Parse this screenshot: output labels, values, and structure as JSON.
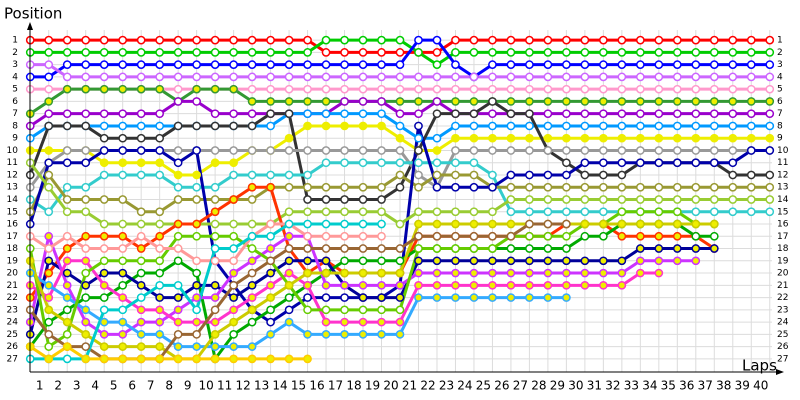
{
  "chart_data": {
    "type": "line",
    "y_label": "Position",
    "x_label": "Laps",
    "x": [
      0,
      1,
      2,
      3,
      4,
      5,
      6,
      7,
      8,
      9,
      10,
      11,
      12,
      13,
      14,
      15,
      16,
      17,
      18,
      19,
      20,
      21,
      22,
      23,
      24,
      25,
      26,
      27,
      28,
      29,
      30,
      31,
      32,
      33,
      34,
      35,
      36,
      37,
      38,
      39,
      40
    ],
    "xlim": [
      -0.5,
      40.5
    ],
    "xticks": [
      1,
      2,
      3,
      4,
      5,
      6,
      7,
      8,
      9,
      10,
      11,
      12,
      13,
      14,
      15,
      16,
      17,
      18,
      19,
      20,
      21,
      22,
      23,
      24,
      25,
      26,
      27,
      28,
      29,
      30,
      31,
      32,
      33,
      34,
      35,
      36,
      37,
      38,
      39,
      40
    ],
    "ylim": [
      27.5,
      0.5
    ],
    "yticks": [
      1,
      2,
      3,
      4,
      5,
      6,
      7,
      8,
      9,
      10,
      11,
      12,
      13,
      14,
      15,
      16,
      17,
      18,
      19,
      20,
      21,
      22,
      23,
      24,
      25,
      26,
      27
    ],
    "grid": true,
    "series": [
      {
        "color": "#ff0000",
        "marker_color": "#ffffff",
        "values": [
          1,
          1,
          1,
          1,
          1,
          1,
          1,
          1,
          1,
          1,
          1,
          1,
          1,
          1,
          1,
          1,
          2,
          2,
          2,
          2,
          2,
          2,
          2,
          1,
          1,
          1,
          1,
          1,
          1,
          1,
          1,
          1,
          1,
          1,
          1,
          1,
          1,
          1,
          1,
          1,
          1
        ]
      },
      {
        "color": "#00cc00",
        "marker_color": "#ffffff",
        "values": [
          2,
          2,
          2,
          2,
          2,
          2,
          2,
          2,
          2,
          2,
          2,
          2,
          2,
          2,
          2,
          2,
          1,
          1,
          1,
          1,
          1,
          2,
          3,
          2,
          2,
          2,
          2,
          2,
          2,
          2,
          2,
          2,
          2,
          2,
          2,
          2,
          2,
          2,
          2,
          2,
          2
        ]
      },
      {
        "color": "#0000ff",
        "marker_color": "#ffffff",
        "values": [
          4,
          4,
          3,
          3,
          3,
          3,
          3,
          3,
          3,
          3,
          3,
          3,
          3,
          3,
          3,
          3,
          3,
          3,
          3,
          3,
          3,
          1,
          1,
          3,
          4,
          3,
          3,
          3,
          3,
          3,
          3,
          3,
          3,
          3,
          3,
          3,
          3,
          3,
          3,
          3,
          3
        ]
      },
      {
        "color": "#cc66ff",
        "marker_color": "#ffffff",
        "values": [
          3,
          3,
          4,
          4,
          4,
          4,
          4,
          4,
          4,
          4,
          4,
          4,
          4,
          4,
          4,
          4,
          4,
          4,
          4,
          4,
          4,
          4,
          4,
          4,
          4,
          4,
          4,
          4,
          4,
          4,
          4,
          4,
          4,
          4,
          4,
          4,
          4,
          4,
          4,
          4,
          4
        ]
      },
      {
        "color": "#ff99cc",
        "marker_color": "#ffffff",
        "values": [
          5,
          5,
          5,
          5,
          5,
          5,
          5,
          5,
          5,
          5,
          5,
          5,
          5,
          5,
          5,
          5,
          5,
          5,
          5,
          5,
          5,
          5,
          5,
          5,
          5,
          5,
          5,
          5,
          5,
          5,
          5,
          5,
          5,
          5,
          5,
          5,
          5,
          5,
          5,
          5,
          5
        ]
      },
      {
        "color": "#339933",
        "marker_color": "#eeee00",
        "values": [
          7,
          6,
          5,
          5,
          5,
          5,
          5,
          5,
          6,
          5,
          5,
          5,
          6,
          6,
          6,
          6,
          6,
          6,
          6,
          6,
          6,
          6,
          6,
          6,
          6,
          6,
          6,
          6,
          6,
          6,
          6,
          6,
          6,
          6,
          6,
          6,
          6,
          6,
          6,
          6,
          6
        ]
      },
      {
        "color": "#9900cc",
        "marker_color": "#ffffff",
        "values": [
          8,
          7,
          7,
          7,
          7,
          7,
          7,
          7,
          6,
          6,
          7,
          7,
          7,
          7,
          7,
          7,
          7,
          6,
          6,
          6,
          7,
          7,
          6,
          7,
          7,
          7,
          7,
          7,
          7,
          7,
          7,
          7,
          7,
          7,
          7,
          7,
          7,
          7,
          7,
          7,
          7
        ]
      },
      {
        "color": "#0099ff",
        "marker_color": "#ffffff",
        "values": [
          9,
          8,
          8,
          8,
          8,
          8,
          8,
          8,
          8,
          8,
          8,
          8,
          8,
          8,
          7,
          7,
          7,
          7,
          7,
          7,
          8,
          9,
          9,
          8,
          8,
          8,
          8,
          8,
          8,
          8,
          8,
          8,
          8,
          8,
          8,
          8,
          8,
          8,
          8,
          8,
          8
        ]
      },
      {
        "color": "#eeee00",
        "marker_color": "#eeee00",
        "values": [
          10,
          10,
          10,
          10,
          11,
          11,
          11,
          11,
          12,
          12,
          11,
          11,
          10,
          10,
          9,
          8,
          8,
          8,
          8,
          8,
          9,
          10,
          10,
          9,
          9,
          9,
          9,
          9,
          9,
          9,
          9,
          9,
          9,
          9,
          9,
          9,
          9,
          9,
          9,
          9,
          9
        ]
      },
      {
        "color": "#333333",
        "marker_color": "#ffffff",
        "values": [
          12,
          8,
          8,
          8,
          9,
          9,
          9,
          9,
          8,
          8,
          8,
          8,
          8,
          7,
          7,
          14,
          14,
          14,
          14,
          14,
          13,
          10,
          7,
          7,
          7,
          6,
          7,
          7,
          10,
          11,
          12,
          12,
          12,
          11,
          11,
          11,
          11,
          11,
          12,
          12,
          12
        ]
      },
      {
        "color": "#999999",
        "marker_color": "#ffffff",
        "values": [
          13,
          11,
          10,
          10,
          10,
          10,
          10,
          10,
          10,
          10,
          10,
          10,
          10,
          10,
          10,
          10,
          10,
          10,
          10,
          10,
          10,
          12,
          13,
          10,
          10,
          10,
          10,
          10,
          10,
          10,
          10,
          10,
          10,
          10,
          10,
          10,
          10,
          10,
          10,
          10,
          10
        ]
      },
      {
        "color": "#33cccc",
        "marker_color": "#ffffff",
        "values": [
          14,
          15,
          13,
          13,
          12,
          12,
          12,
          12,
          13,
          13,
          13,
          12,
          12,
          12,
          12,
          12,
          11,
          11,
          11,
          11,
          11,
          11,
          11,
          11,
          11,
          12,
          15,
          15,
          15,
          15,
          15,
          15,
          15,
          15,
          15,
          15,
          15,
          15,
          15,
          15,
          15
        ]
      },
      {
        "color": "#999933",
        "marker_color": "#ffffff",
        "values": [
          15,
          12,
          14,
          14,
          14,
          14,
          15,
          15,
          14,
          14,
          14,
          14,
          14,
          13,
          13,
          13,
          13,
          13,
          13,
          13,
          12,
          13,
          12,
          12,
          12,
          13,
          13,
          13,
          13,
          13,
          13,
          13,
          13,
          13,
          13,
          13,
          13,
          13,
          13,
          13,
          13
        ]
      },
      {
        "color": "#0000aa",
        "marker_color": "#ffffff",
        "values": [
          16,
          11,
          11,
          11,
          10,
          10,
          10,
          10,
          11,
          10,
          19,
          21,
          23,
          24,
          23,
          22,
          22,
          22,
          22,
          22,
          21,
          8,
          13,
          13,
          13,
          13,
          12,
          12,
          12,
          12,
          11,
          11,
          11,
          11,
          11,
          11,
          11,
          11,
          11,
          10,
          10
        ]
      },
      {
        "color": "#99cc33",
        "marker_color": "#ffffff",
        "values": [
          11,
          13,
          15,
          15,
          16,
          16,
          16,
          16,
          16,
          16,
          16,
          16,
          16,
          16,
          15,
          15,
          15,
          15,
          15,
          15,
          16,
          15,
          15,
          15,
          15,
          15,
          14,
          14,
          14,
          14,
          14,
          14,
          14,
          14,
          14,
          14,
          14,
          14,
          14,
          14,
          14
        ]
      },
      {
        "color": "#ff3300",
        "marker_color": "#eeee00",
        "values": [
          22,
          20,
          18,
          17,
          17,
          17,
          18,
          17,
          16,
          16,
          15,
          14,
          13,
          13,
          18,
          20,
          19,
          20,
          20,
          20,
          20,
          17,
          17,
          17,
          17,
          17,
          17,
          17,
          17,
          16,
          16,
          16,
          17,
          17,
          17,
          17,
          17,
          18,
          null,
          null,
          null
        ]
      },
      {
        "color": "#00aa00",
        "marker_color": "#ffffff",
        "values": [
          26,
          24,
          23,
          22,
          22,
          21,
          20,
          20,
          19,
          20,
          27,
          25,
          24,
          23,
          22,
          21,
          20,
          19,
          19,
          19,
          19,
          18,
          18,
          18,
          18,
          18,
          18,
          18,
          18,
          18,
          17,
          17,
          16,
          16,
          16,
          16,
          17,
          17,
          null,
          null,
          null
        ]
      },
      {
        "color": "#000099",
        "marker_color": "#eeee00",
        "values": [
          25,
          19,
          20,
          21,
          20,
          20,
          21,
          22,
          22,
          21,
          21,
          22,
          21,
          20,
          19,
          19,
          19,
          21,
          22,
          22,
          22,
          19,
          19,
          19,
          19,
          19,
          19,
          19,
          19,
          19,
          19,
          19,
          19,
          18,
          18,
          18,
          18,
          18,
          null,
          null,
          null
        ]
      },
      {
        "color": "#cc33ff",
        "marker_color": "#eeee00",
        "values": [
          24,
          17,
          21,
          24,
          25,
          25,
          24,
          24,
          23,
          22,
          22,
          20,
          19,
          18,
          17,
          17,
          21,
          21,
          21,
          21,
          21,
          20,
          20,
          20,
          20,
          20,
          20,
          20,
          20,
          20,
          20,
          20,
          20,
          19,
          19,
          19,
          19,
          null,
          null,
          null,
          null
        ]
      },
      {
        "color": "#ff33cc",
        "marker_color": "#eeee00",
        "values": [
          21,
          22,
          19,
          19,
          21,
          22,
          23,
          23,
          24,
          24,
          24,
          23,
          22,
          21,
          20,
          21,
          24,
          24,
          24,
          24,
          24,
          21,
          21,
          21,
          21,
          21,
          21,
          21,
          21,
          21,
          21,
          21,
          21,
          20,
          20,
          null,
          null,
          null,
          null,
          null,
          null
        ]
      },
      {
        "color": "#33aaff",
        "marker_color": "#eeee00",
        "values": [
          20,
          21,
          22,
          23,
          24,
          24,
          25,
          25,
          26,
          26,
          26,
          26,
          26,
          25,
          24,
          25,
          25,
          25,
          25,
          25,
          25,
          22,
          22,
          22,
          22,
          22,
          22,
          22,
          22,
          22,
          null,
          null,
          null,
          null,
          null,
          null,
          null,
          null,
          null,
          null,
          null
        ]
      },
      {
        "color": "#66cc00",
        "marker_color": "#ffffff",
        "values": [
          18,
          26,
          25,
          20,
          19,
          19,
          19,
          19,
          17,
          17,
          17,
          17,
          18,
          19,
          21,
          23,
          23,
          23,
          23,
          23,
          23,
          18,
          18,
          18,
          18,
          18,
          17,
          17,
          17,
          17,
          16,
          16,
          15,
          15,
          15,
          15,
          16,
          16,
          null,
          null,
          null
        ]
      },
      {
        "color": "#cccc00",
        "marker_color": "#eeee00",
        "values": [
          19,
          23,
          24,
          25,
          26,
          26,
          26,
          26,
          27,
          27,
          25,
          24,
          23,
          22,
          21,
          20,
          20,
          20,
          20,
          20,
          20,
          16,
          16,
          16,
          16,
          16,
          16,
          16,
          16,
          16,
          16,
          16,
          16,
          16,
          16,
          16,
          16,
          16,
          null,
          null,
          null
        ]
      },
      {
        "color": "#996633",
        "marker_color": "#ffffff",
        "values": [
          23,
          25,
          26,
          26,
          27,
          27,
          27,
          27,
          25,
          25,
          23,
          21,
          20,
          19,
          18,
          18,
          18,
          18,
          18,
          18,
          18,
          17,
          17,
          17,
          17,
          17,
          17,
          16,
          16,
          16,
          null,
          null,
          null,
          null,
          null,
          null,
          null,
          null,
          null,
          null,
          null
        ]
      },
      {
        "color": "#ff9999",
        "marker_color": "#ffffff",
        "values": [
          17,
          18,
          17,
          18,
          18,
          18,
          17,
          18,
          18,
          19,
          19,
          19,
          17,
          16,
          16,
          17,
          17,
          17,
          17,
          17,
          null,
          null,
          null,
          null,
          null,
          null,
          null,
          null,
          null,
          null,
          null,
          null,
          null,
          null,
          null,
          null,
          null,
          null,
          null,
          null,
          null
        ]
      },
      {
        "color": "#00cccc",
        "marker_color": "#ffffff",
        "values": [
          27,
          27,
          27,
          27,
          23,
          23,
          22,
          21,
          21,
          23,
          18,
          18,
          17,
          17,
          16,
          16,
          16,
          16,
          16,
          16,
          null,
          null,
          null,
          null,
          null,
          null,
          null,
          null,
          null,
          null,
          null,
          null,
          null,
          null,
          null,
          null,
          null,
          null,
          null,
          null,
          null
        ]
      },
      {
        "color": "#ffcc00",
        "marker_color": "#eeee00",
        "values": [
          26,
          27,
          26,
          27,
          27,
          27,
          27,
          27,
          27,
          27,
          27,
          27,
          27,
          27,
          27,
          27,
          null,
          null,
          null,
          null,
          null,
          null,
          null,
          null,
          null,
          null,
          null,
          null,
          null,
          null,
          null,
          null,
          null,
          null,
          null,
          null,
          null,
          null,
          null,
          null,
          null
        ]
      }
    ]
  }
}
